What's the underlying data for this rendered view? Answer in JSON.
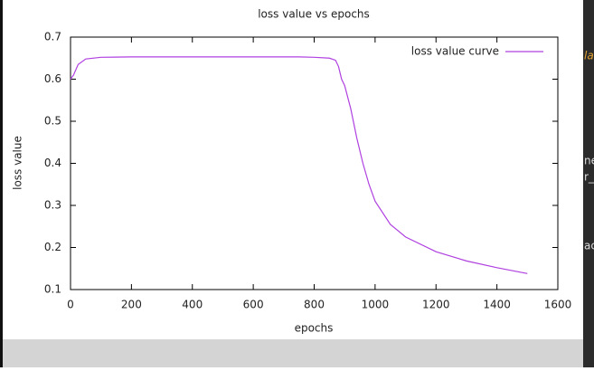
{
  "chart_data": {
    "type": "line",
    "title": "loss value vs epochs",
    "x_label": "epochs",
    "y_label": "loss value",
    "x": [
      0,
      10,
      25,
      50,
      100,
      200,
      400,
      600,
      750,
      800,
      850,
      870,
      880,
      890,
      900,
      920,
      940,
      960,
      980,
      1000,
      1050,
      1100,
      1200,
      1300,
      1400,
      1500
    ],
    "series": [
      {
        "name": "loss value curve",
        "color": "#b040e0",
        "values": [
          0.6,
          0.61,
          0.635,
          0.648,
          0.652,
          0.653,
          0.653,
          0.653,
          0.653,
          0.652,
          0.65,
          0.645,
          0.63,
          0.6,
          0.585,
          0.53,
          0.46,
          0.4,
          0.35,
          0.31,
          0.255,
          0.225,
          0.19,
          0.168,
          0.152,
          0.138
        ]
      }
    ],
    "xlim": [
      0,
      1600
    ],
    "xticks": [
      0,
      200,
      400,
      600,
      800,
      1000,
      1200,
      1400,
      1600
    ],
    "ylim": [
      0.1,
      0.7
    ],
    "yticks": [
      0.1,
      0.2,
      0.3,
      0.4,
      0.5,
      0.6,
      0.7
    ],
    "legend": "top-right"
  },
  "side_panel": {
    "fragments": [
      "la",
      "ne",
      "r_",
      "ac"
    ]
  }
}
